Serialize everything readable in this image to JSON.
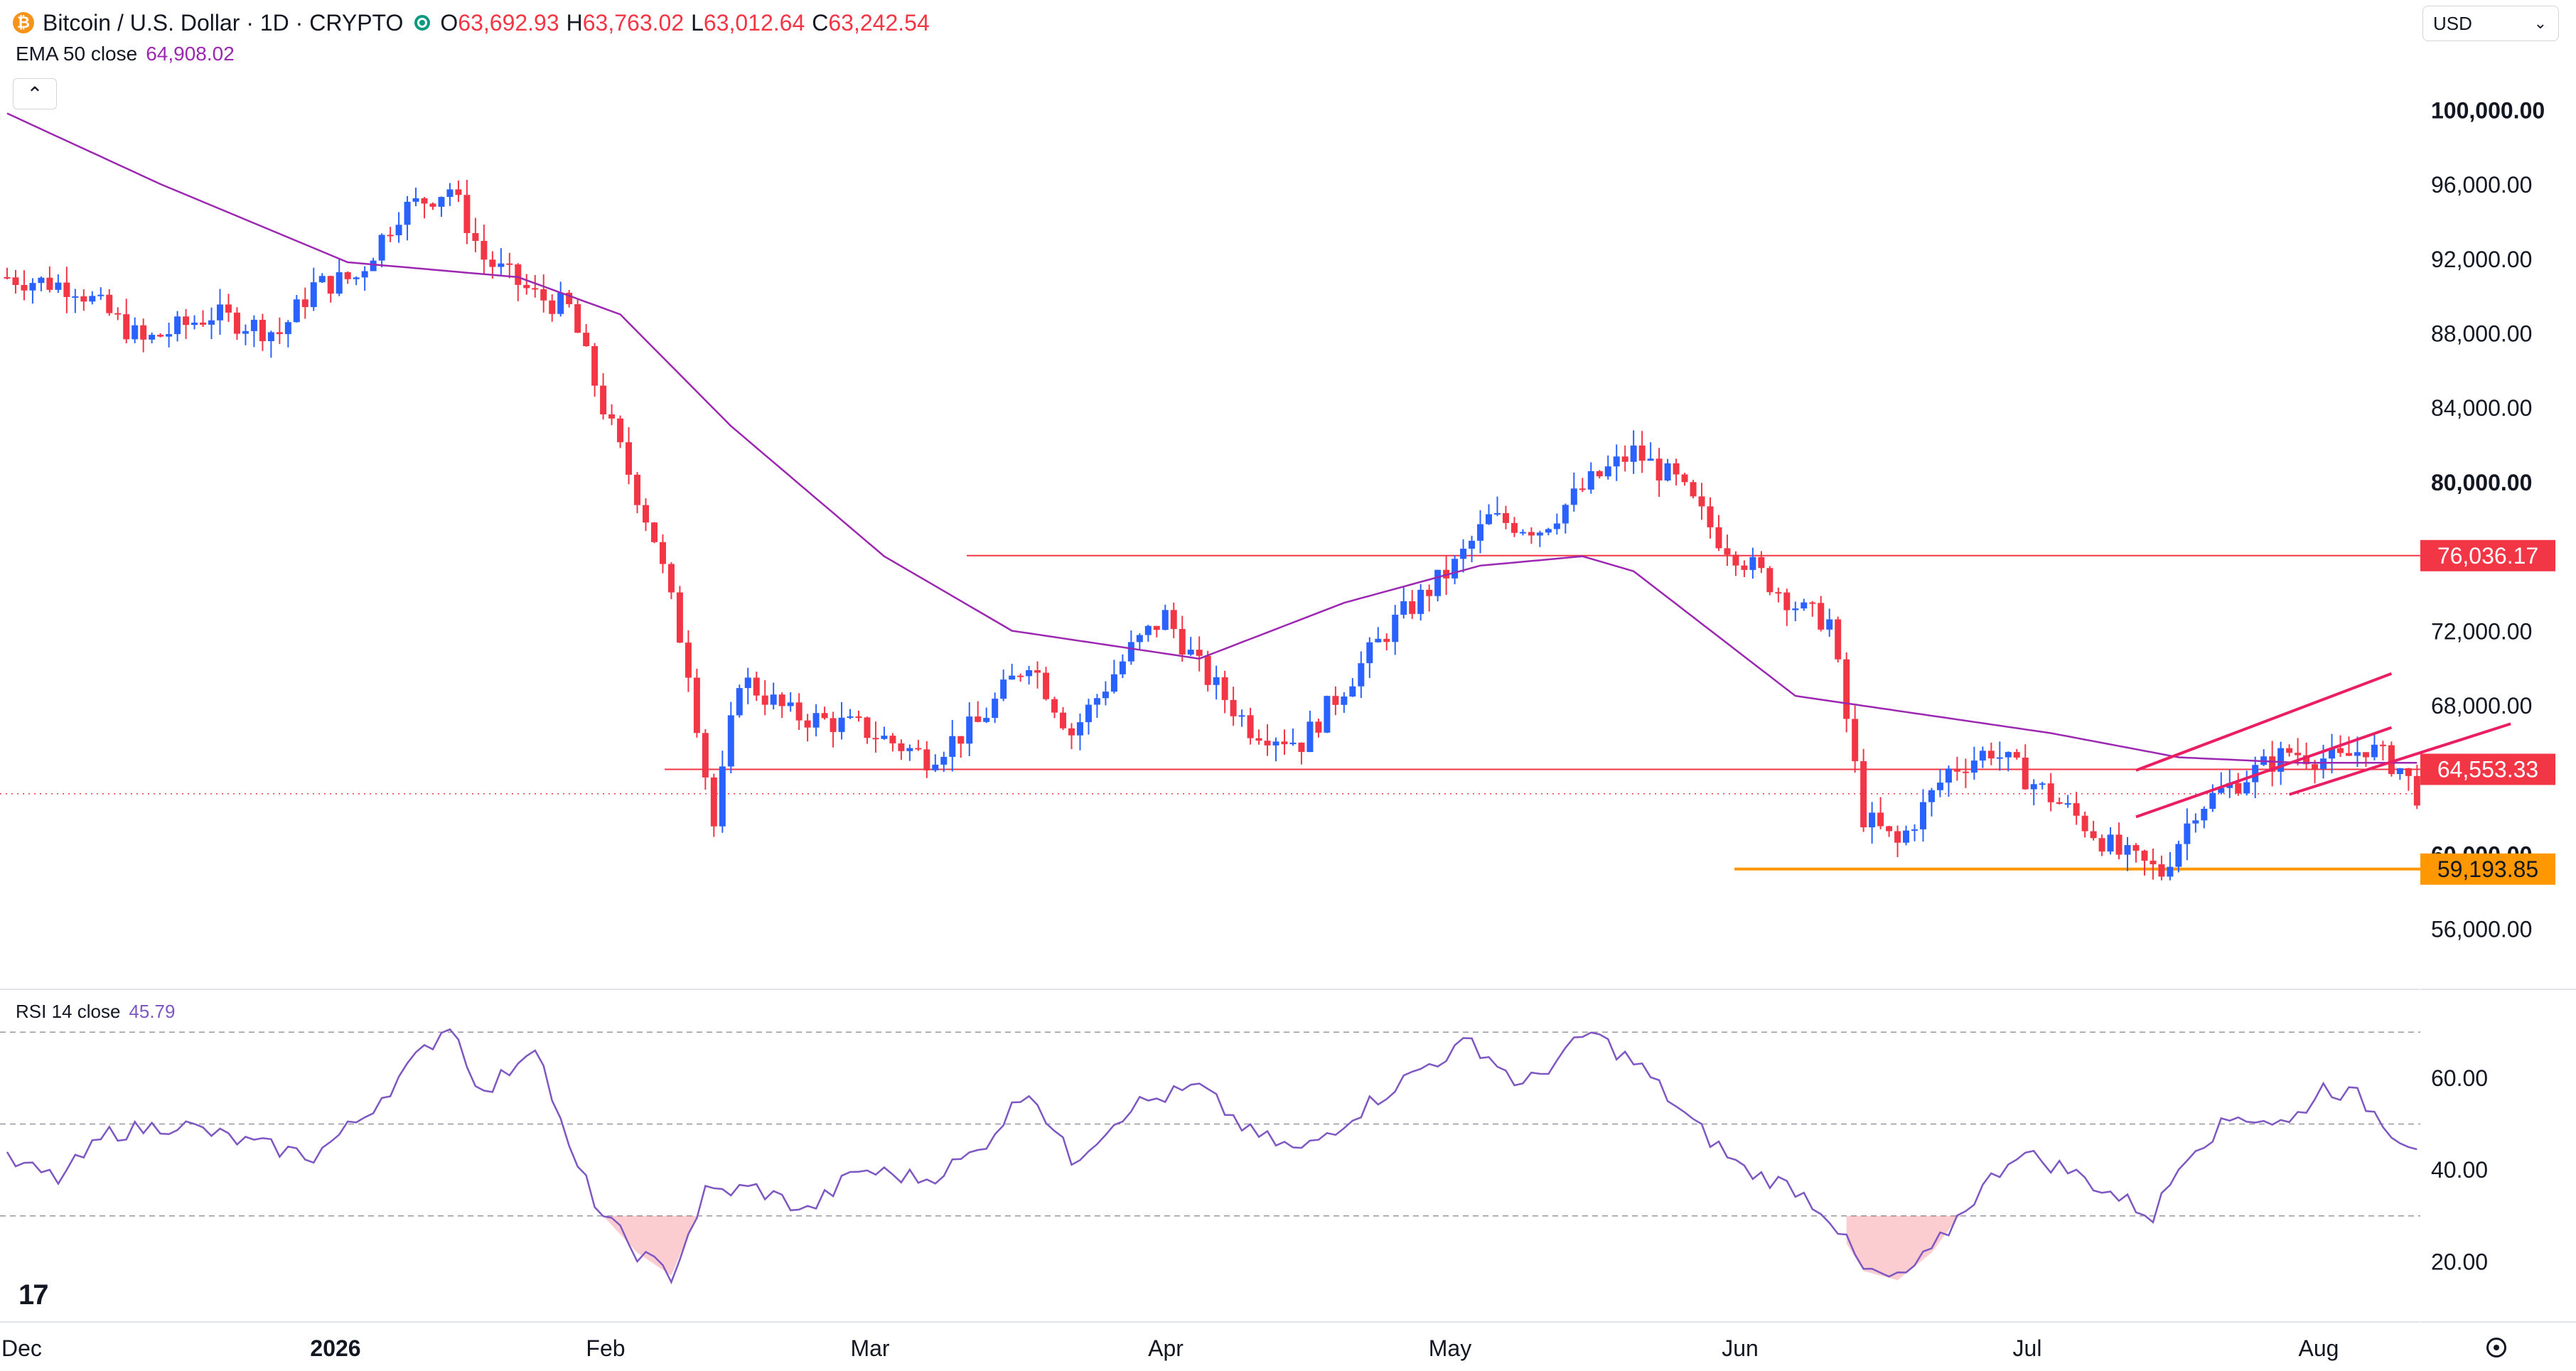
{
  "header": {
    "symbol": "Bitcoin / U.S. Dollar · 1D · CRYPTO",
    "open_label": "O",
    "open": "63,692.93",
    "high_label": "H",
    "high": "63,763.02",
    "low_label": "L",
    "low": "63,012.64",
    "close_label": "C",
    "close": "63,242.54"
  },
  "indicators": {
    "ema_label": "EMA 50 close",
    "ema_value": "64,908.02",
    "rsi_label": "RSI 14 close",
    "rsi_value": "45.79"
  },
  "currency": {
    "selected": "USD"
  },
  "toolbar": {
    "collapse_label": "⌃",
    "logo": "17"
  },
  "icons": {
    "coin": "bitcoin-icon",
    "status": "market-open-icon",
    "settings": "gear-icon"
  },
  "colors": {
    "up": "#2962ff",
    "down": "#f23645",
    "ema": "#9c27b0",
    "rsi": "#7e57c2",
    "resistance": "#f23645",
    "support": "#ff9800",
    "channel": "#e91e63"
  },
  "chart_data": {
    "type": "candlestick",
    "x_axis": {
      "tick_labels": [
        "Dec",
        "2026",
        "Feb",
        "Mar",
        "Apr",
        "May",
        "Jun",
        "Jul",
        "Aug"
      ]
    },
    "y_axis": {
      "tick_labels": [
        "100,000.00",
        "96,000.00",
        "92,000.00",
        "88,000.00",
        "84,000.00",
        "80,000.00",
        "72,000.00",
        "68,000.00",
        "60,000.00",
        "56,000.00"
      ],
      "range": [
        53000,
        101500
      ]
    },
    "price_lines": [
      {
        "name": "resistance",
        "value": 76036.17,
        "label": "76,036.17",
        "color": "#f23645"
      },
      {
        "name": "mid-level",
        "value": 64553.33,
        "label": "64,553.33",
        "color": "#f23645"
      },
      {
        "name": "support",
        "value": 59193.85,
        "label": "59,193.85",
        "color": "#ff9800"
      }
    ],
    "last_price": 63242.54,
    "ema_series_anchors": [
      [
        0,
        99800
      ],
      [
        18,
        96000
      ],
      [
        40,
        91800
      ],
      [
        60,
        91000
      ],
      [
        72,
        89000
      ],
      [
        85,
        83000
      ],
      [
        103,
        76000
      ],
      [
        118,
        72000
      ],
      [
        140,
        70500
      ],
      [
        157,
        73500
      ],
      [
        173,
        75500
      ],
      [
        185,
        76000
      ],
      [
        191,
        75200
      ],
      [
        210,
        68500
      ],
      [
        240,
        66500
      ],
      [
        255,
        65200
      ],
      [
        269,
        64908
      ]
    ],
    "price_anchors": [
      [
        0,
        91000
      ],
      [
        8,
        90500
      ],
      [
        16,
        87500
      ],
      [
        24,
        89000
      ],
      [
        32,
        88000
      ],
      [
        36,
        90500
      ],
      [
        41,
        91000
      ],
      [
        46,
        94500
      ],
      [
        52,
        95800
      ],
      [
        56,
        92000
      ],
      [
        62,
        90000
      ],
      [
        66,
        89300
      ],
      [
        70,
        84000
      ],
      [
        76,
        77000
      ],
      [
        80,
        70000
      ],
      [
        83,
        61500
      ],
      [
        86,
        69500
      ],
      [
        92,
        67500
      ],
      [
        100,
        66800
      ],
      [
        108,
        65200
      ],
      [
        114,
        67000
      ],
      [
        120,
        70500
      ],
      [
        125,
        66500
      ],
      [
        132,
        71000
      ],
      [
        136,
        72800
      ],
      [
        140,
        70000
      ],
      [
        146,
        66800
      ],
      [
        152,
        66000
      ],
      [
        157,
        69000
      ],
      [
        163,
        72500
      ],
      [
        170,
        75500
      ],
      [
        174,
        78000
      ],
      [
        180,
        77500
      ],
      [
        186,
        80000
      ],
      [
        191,
        81600
      ],
      [
        196,
        80000
      ],
      [
        201,
        77000
      ],
      [
        206,
        75000
      ],
      [
        211,
        73000
      ],
      [
        214,
        72500
      ],
      [
        218,
        62000
      ],
      [
        222,
        60500
      ],
      [
        228,
        64500
      ],
      [
        233,
        65600
      ],
      [
        238,
        63800
      ],
      [
        243,
        62000
      ],
      [
        248,
        60000
      ],
      [
        253,
        59000
      ],
      [
        257,
        62500
      ],
      [
        263,
        64200
      ],
      [
        268,
        65500
      ],
      [
        274,
        65000
      ],
      [
        277,
        65800
      ],
      [
        281,
        64600
      ],
      [
        283,
        63242
      ]
    ],
    "channel_lines": [
      {
        "from": [
          250,
          62000
        ],
        "to": [
          280,
          66800
        ]
      },
      {
        "from": [
          250,
          64500
        ],
        "to": [
          280,
          69700
        ]
      },
      {
        "from": [
          268,
          63200
        ],
        "to": [
          294,
          67000
        ]
      }
    ],
    "rsi": {
      "y_ticks": [
        "60.00",
        "40.00",
        "20.00"
      ],
      "range": [
        10,
        75
      ],
      "bands": [
        30,
        50,
        70
      ],
      "anchors": [
        [
          0,
          42
        ],
        [
          6,
          38
        ],
        [
          12,
          48
        ],
        [
          20,
          50
        ],
        [
          28,
          46
        ],
        [
          36,
          43
        ],
        [
          42,
          52
        ],
        [
          48,
          64
        ],
        [
          52,
          72
        ],
        [
          56,
          56
        ],
        [
          62,
          68
        ],
        [
          66,
          44
        ],
        [
          70,
          30
        ],
        [
          74,
          22
        ],
        [
          78,
          17
        ],
        [
          82,
          35
        ],
        [
          88,
          36
        ],
        [
          94,
          31
        ],
        [
          100,
          40
        ],
        [
          108,
          38
        ],
        [
          114,
          44
        ],
        [
          120,
          58
        ],
        [
          125,
          42
        ],
        [
          132,
          54
        ],
        [
          140,
          58
        ],
        [
          146,
          48
        ],
        [
          152,
          44
        ],
        [
          158,
          52
        ],
        [
          166,
          62
        ],
        [
          172,
          68
        ],
        [
          178,
          58
        ],
        [
          186,
          70
        ],
        [
          192,
          62
        ],
        [
          198,
          50
        ],
        [
          204,
          40
        ],
        [
          210,
          36
        ],
        [
          214,
          30
        ],
        [
          218,
          18
        ],
        [
          222,
          16
        ],
        [
          226,
          22
        ],
        [
          230,
          32
        ],
        [
          236,
          44
        ],
        [
          242,
          40
        ],
        [
          248,
          34
        ],
        [
          252,
          30
        ],
        [
          256,
          44
        ],
        [
          262,
          52
        ],
        [
          268,
          50
        ],
        [
          272,
          58
        ],
        [
          276,
          56
        ],
        [
          281,
          47
        ],
        [
          283,
          45.79
        ]
      ]
    }
  }
}
